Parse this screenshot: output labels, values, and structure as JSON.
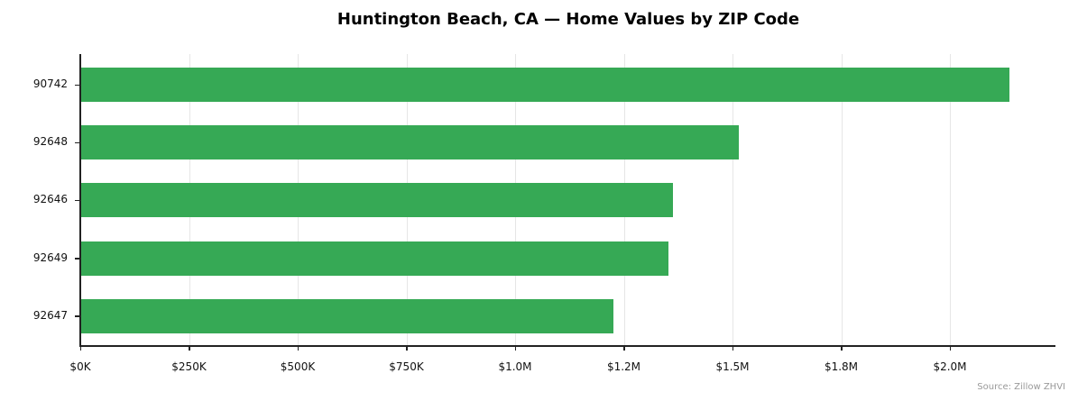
{
  "chart_data": {
    "type": "bar",
    "orientation": "horizontal",
    "title": "Huntington Beach, CA — Home Values by ZIP Code",
    "xlabel": "",
    "ylabel": "",
    "categories": [
      "90742",
      "92648",
      "92646",
      "92649",
      "92647"
    ],
    "values": [
      2137000,
      1515000,
      1363000,
      1353000,
      1226000
    ],
    "xlim": [
      0,
      2243000
    ],
    "x_ticks": [
      0,
      250000,
      500000,
      750000,
      1000000,
      1250000,
      1500000,
      1750000,
      2000000
    ],
    "x_tick_labels": [
      "$0K",
      "$250K",
      "$500K",
      "$750K",
      "$1.0M",
      "$1.2M",
      "$1.5M",
      "$1.8M",
      "$2.0M"
    ],
    "grid": "x",
    "bar_color": "#34a853",
    "annotation": "Source: Zillow ZHVI"
  },
  "title": "Huntington Beach, CA — Home Values by ZIP Code",
  "source": "Source: Zillow ZHVI",
  "ylabels": [
    "90742",
    "92648",
    "92646",
    "92649",
    "92647"
  ],
  "xlabels": [
    "$0K",
    "$250K",
    "$500K",
    "$750K",
    "$1.0M",
    "$1.2M",
    "$1.5M",
    "$1.8M",
    "$2.0M"
  ]
}
